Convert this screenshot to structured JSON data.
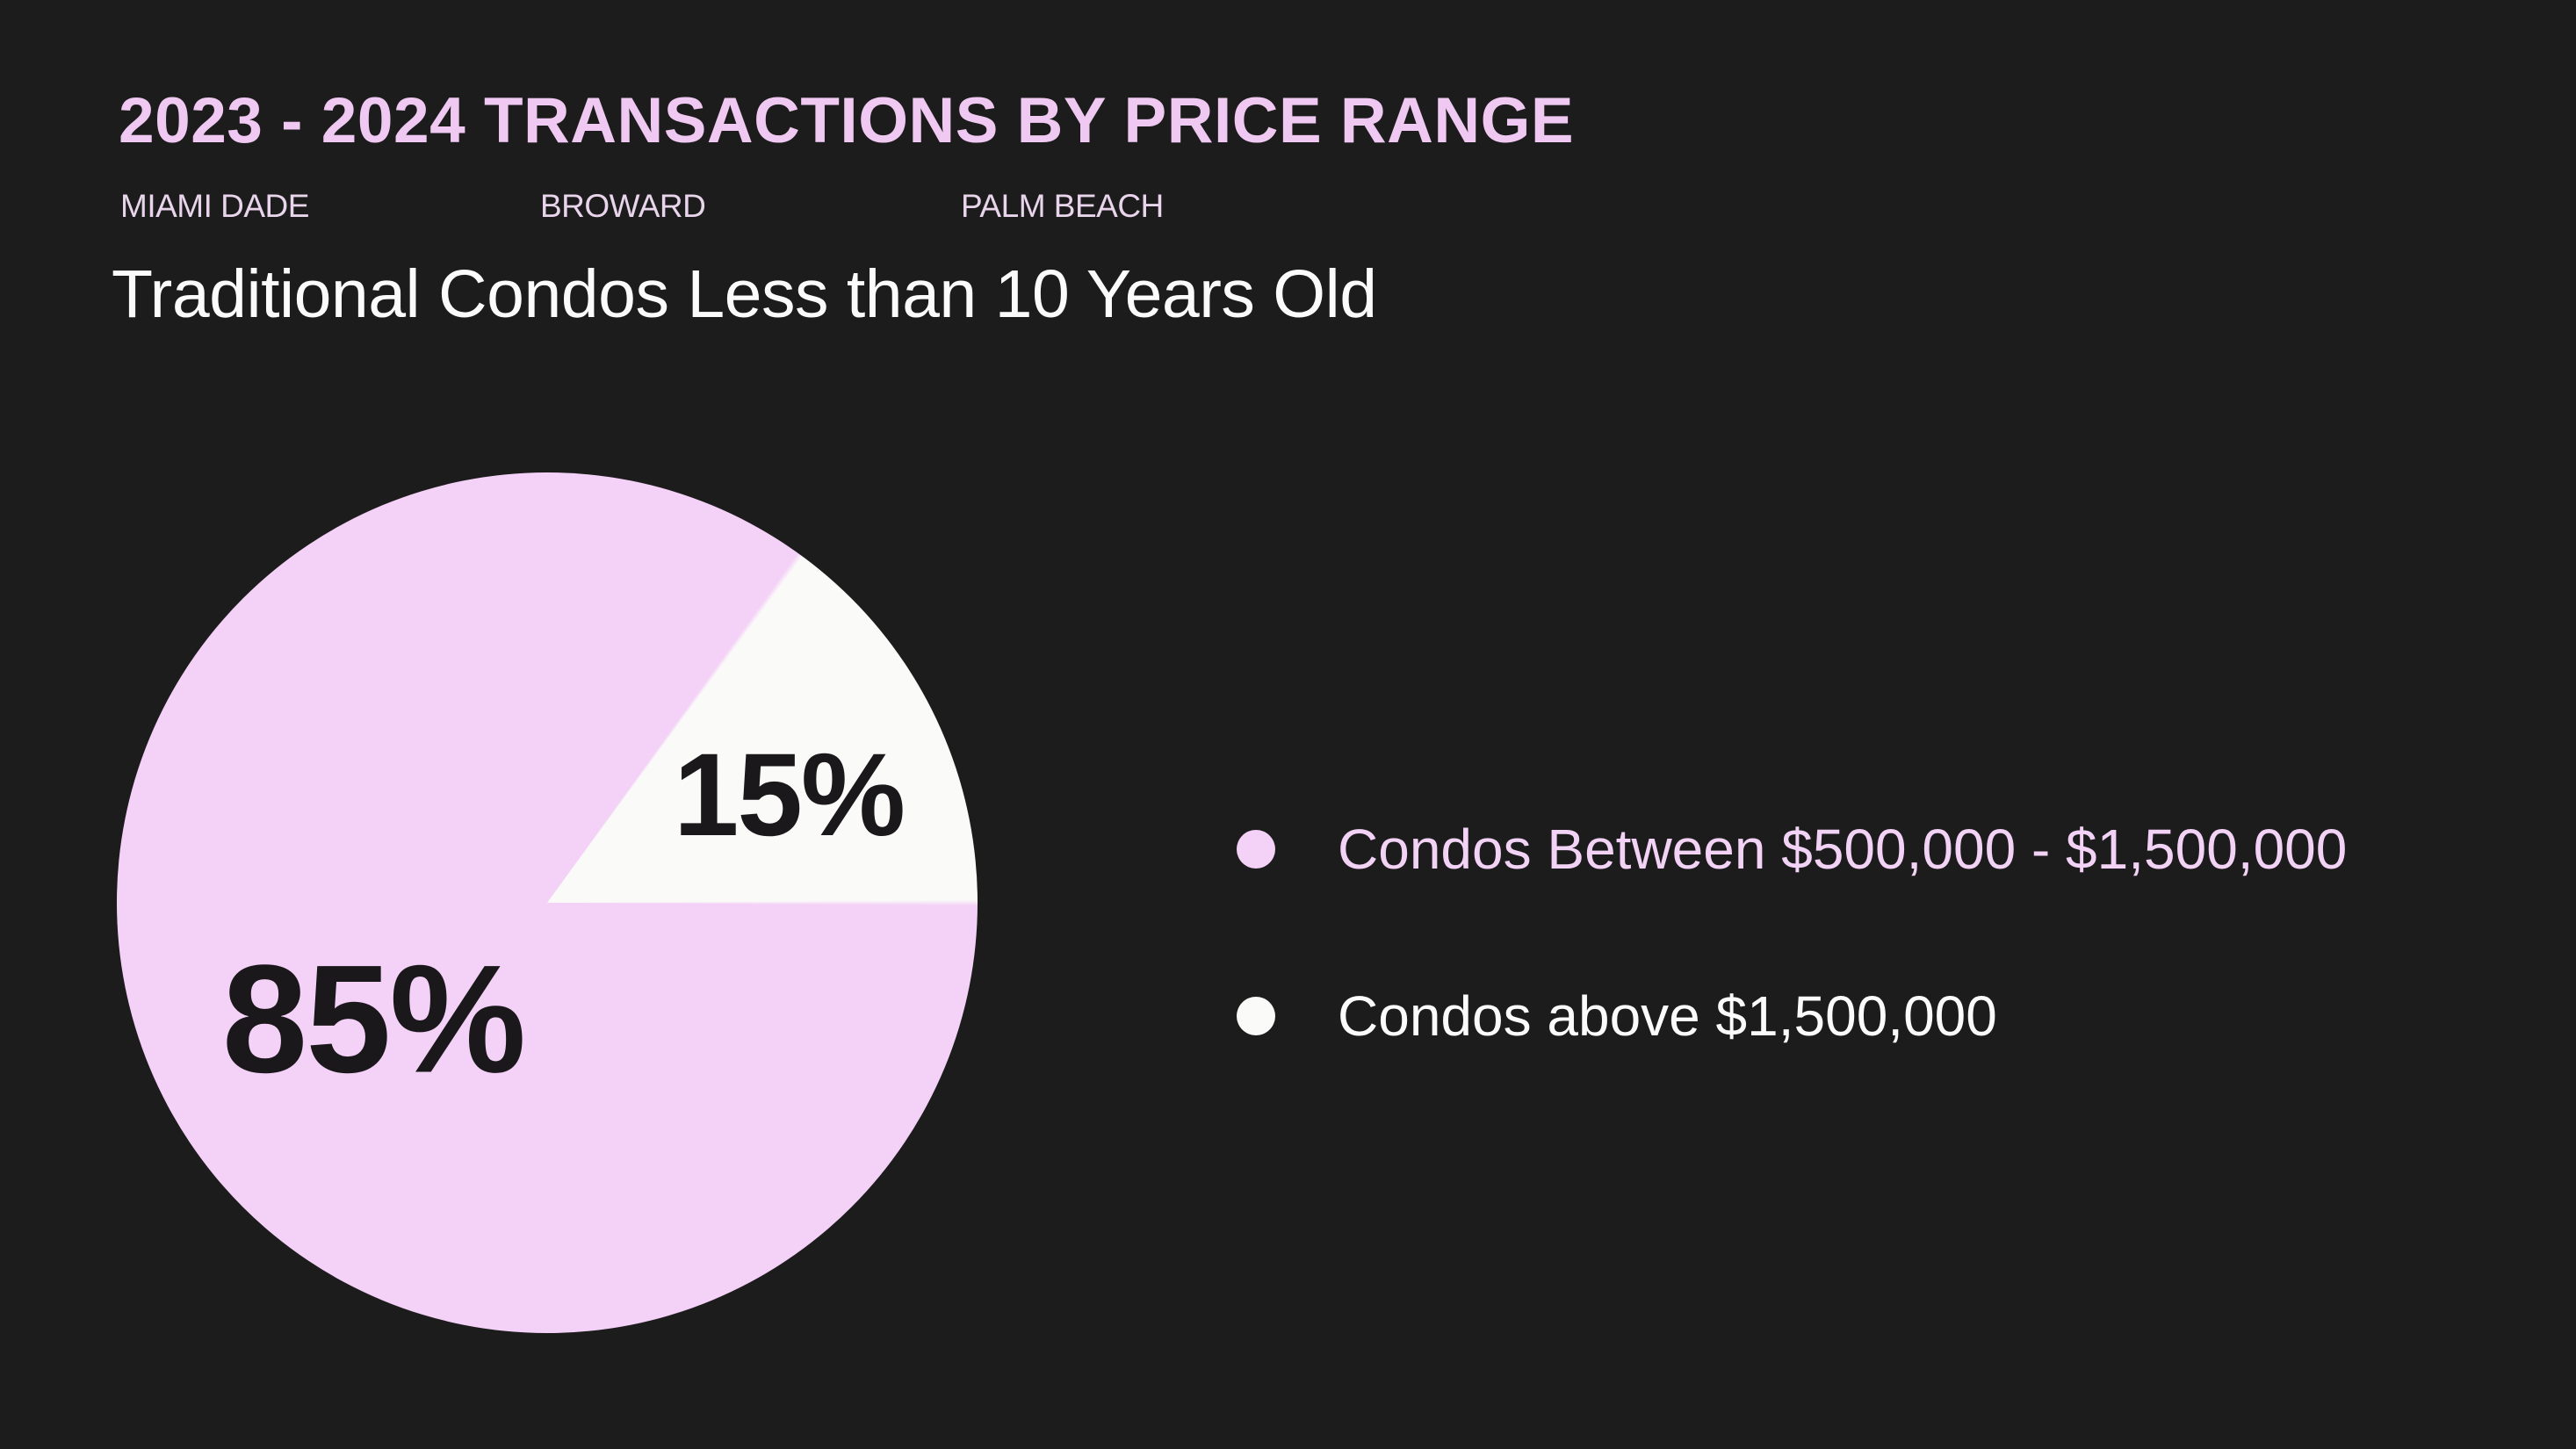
{
  "colors": {
    "background": "#1D1C1D",
    "accent_pink": "#F4D1F7",
    "off_white": "#FAFAF8",
    "title_pink": "#EFC9F1",
    "county_pink": "#E9D5EB",
    "dark_text": "#1A181A"
  },
  "header": {
    "title": "2023 - 2024 TRANSACTIONS BY PRICE RANGE",
    "counties": [
      "MIAMI DADE",
      "BROWARD",
      "PALM BEACH"
    ],
    "subtitle": "Traditional Condos Less than 10 Years Old"
  },
  "chart_data": {
    "type": "pie",
    "title": "2023 - 2024 TRANSACTIONS BY PRICE RANGE",
    "subtitle": "Traditional Condos Less than 10 Years Old",
    "regions": [
      "Miami Dade",
      "Broward",
      "Palm Beach"
    ],
    "categories": [
      "Condos Between $500,000 - $1,500,000",
      "Condos above $1,500,000"
    ],
    "values": [
      85,
      15
    ],
    "slices": [
      {
        "label": "Condos Between $500,000 - $1,500,000",
        "value": 85,
        "display": "85%",
        "color": "#F4D1F7"
      },
      {
        "label": "Condos above $1,500,000",
        "value": 15,
        "display": "15%",
        "color": "#FAFAF8"
      }
    ],
    "legend_position": "right",
    "white_wedge_conic_deg": [
      36,
      90
    ]
  },
  "legend": {
    "items": [
      {
        "label": "Condos Between $500,000 - $1,500,000",
        "color": "#F4D1F7"
      },
      {
        "label": "Condos above $1,500,000",
        "color": "#FAFAF8"
      }
    ]
  }
}
